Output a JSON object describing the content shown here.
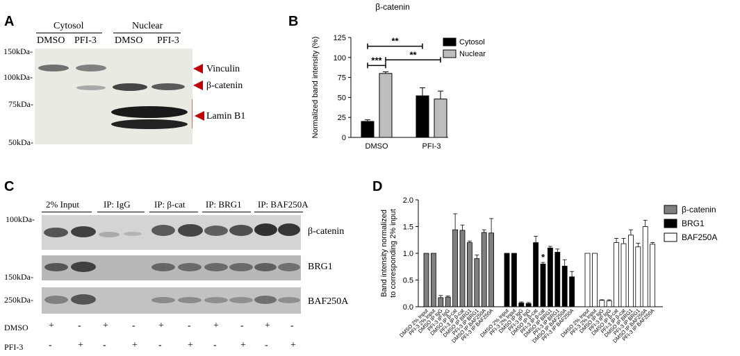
{
  "panelA": {
    "letter": "A",
    "groups": [
      "Cytosol",
      "Nuclear"
    ],
    "lanes": [
      "DMSO",
      "PFI-3",
      "DMSO",
      "PFI-3"
    ],
    "markers": [
      "150kDa-",
      "100kDa-",
      "75kDa-",
      "50kDa-"
    ],
    "bands": [
      "Vinculin",
      "β-catenin",
      "Lamin B1"
    ],
    "colors": {
      "arrow": "#c00000",
      "bracket": "#e03030"
    }
  },
  "panelB": {
    "letter": "B",
    "chart_data": {
      "type": "bar",
      "title": "β-catenin",
      "ylabel": "Normalized band intensity (%)",
      "xlabel": "",
      "categories": [
        "DMSO",
        "PFI-3"
      ],
      "ylim": [
        0,
        125
      ],
      "yticks": [
        "0",
        "25",
        "50",
        "75",
        "100",
        "125"
      ],
      "series": [
        {
          "name": "Cytosol",
          "values": [
            20,
            52
          ],
          "errors": [
            2,
            10
          ],
          "color": "#000000"
        },
        {
          "name": "Nuclear",
          "values": [
            80,
            48
          ],
          "errors": [
            2,
            10
          ],
          "color": "#bdbdbd"
        }
      ],
      "significance": [
        {
          "label": "***",
          "from": "DMSO Cytosol",
          "to": "DMSO Nuclear",
          "y": 90
        },
        {
          "label": "**",
          "from": "DMSO Cytosol",
          "to": "PFI-3 Cytosol",
          "y": 114
        },
        {
          "label": "**",
          "from": "DMSO Nuclear",
          "to": "PFI-3 Nuclear",
          "y": 97
        }
      ],
      "legend_position": "right"
    }
  },
  "panelC": {
    "letter": "C",
    "columns": [
      "2% Input",
      "IP: IgG",
      "IP: β-cat",
      "IP: BRG1",
      "IP: BAF250A"
    ],
    "markers": [
      "100kDa-",
      "150kDa-",
      "250kDa-"
    ],
    "rows": [
      "β-catenin",
      "BRG1",
      "BAF250A"
    ],
    "treatments": [
      {
        "label": "DMSO",
        "values": [
          "+",
          "-",
          "+",
          "-",
          "+",
          "-",
          "+",
          "-",
          "+",
          "-"
        ]
      },
      {
        "label": "PFI-3",
        "values": [
          "-",
          "+",
          "-",
          "+",
          "-",
          "+",
          "-",
          "+",
          "-",
          "+"
        ]
      }
    ]
  },
  "panelD": {
    "letter": "D",
    "chart_data": {
      "type": "bar",
      "ylabel": "Band intensity normalized to corresponding 2% input",
      "xlabel": "",
      "ylim": [
        0,
        2.0
      ],
      "yticks": [
        "0.0",
        "0.5",
        "1.0",
        "1.5",
        "2.0"
      ],
      "legend_position": "top-right",
      "series": [
        {
          "name": "β-catenin",
          "color": "#7f7f7f",
          "categories": [
            "DMSO 2% Input",
            "PFI-3 2% Input",
            "DMSO IP IgG",
            "PFI-3 IP IgG",
            "DMSO IP β-cat",
            "PFI-3 IP β-cat",
            "DMSO IP BRG1",
            "PFI-3 IP BRG1",
            "DMSO IP BAF250A",
            "PFI-3 IP BAF250A"
          ],
          "values": [
            1.0,
            1.0,
            0.17,
            0.18,
            1.44,
            1.43,
            1.2,
            0.9,
            1.39,
            1.38
          ],
          "errors": [
            0,
            0,
            0.04,
            0.02,
            0.3,
            0.1,
            0.03,
            0.07,
            0.05,
            0.27
          ]
        },
        {
          "name": "BRG1",
          "color": "#000000",
          "categories": [
            "DMSO 2% Input",
            "PFI-3 2% Input",
            "DMSO IP IgG",
            "PFI-3 IP IgG",
            "DMSO IP β-cat",
            "PFI-3 IP β-cat",
            "DMSO IP BRG1",
            "PFI-3 IP BRG1",
            "DMSO IP BAF250A",
            "PFI-3 IP BAF250A"
          ],
          "values": [
            1.0,
            1.0,
            0.07,
            0.06,
            1.2,
            0.8,
            1.1,
            1.02,
            0.76,
            0.56
          ],
          "errors": [
            0,
            0,
            0.02,
            0.02,
            0.12,
            0.03,
            0.03,
            0.06,
            0.12,
            0.1
          ]
        },
        {
          "name": "BAF250A",
          "color": "#ffffff",
          "categories": [
            "DMSO 2% Input",
            "PFI-3 2% Input",
            "DMSO IP IgG",
            "PFI-3 IP IgG",
            "DMSO IP β-cat",
            "PFI-3 IP β-cat",
            "DMSO IP BRG1",
            "PFI-3 IP BRG1",
            "DMSO IP BAF250A",
            "PFI-3 IP BAF250A"
          ],
          "values": [
            1.0,
            1.0,
            0.12,
            0.11,
            1.2,
            1.18,
            1.34,
            1.12,
            1.5,
            1.17
          ],
          "errors": [
            0,
            0,
            0.01,
            0.02,
            0.08,
            0.1,
            0.1,
            0.07,
            0.12,
            0.03
          ]
        }
      ],
      "annotations": [
        {
          "label": "*",
          "series": "BRG1",
          "category": "PFI-3 IP β-cat"
        }
      ]
    }
  }
}
